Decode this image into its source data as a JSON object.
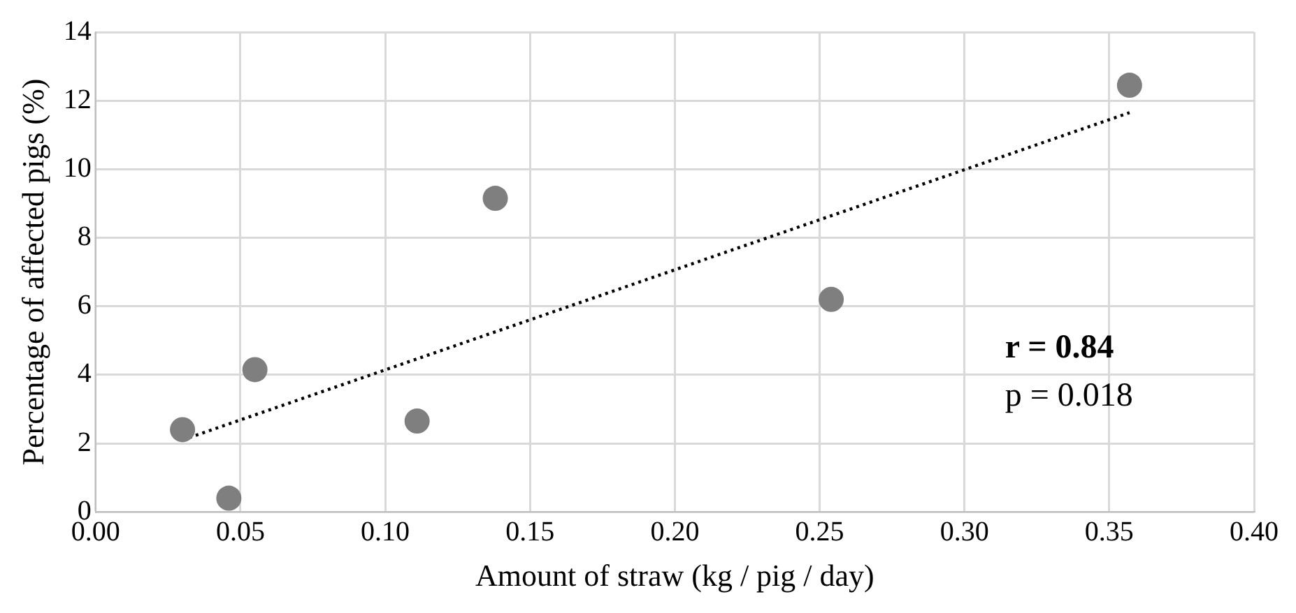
{
  "chart_data": {
    "type": "scatter",
    "xlabel": "Amount of straw (kg / pig / day)",
    "ylabel": "Percentage of affected pigs (%)",
    "series": [
      {
        "type": "scatter",
        "color": "#7f7f7f",
        "marker": "circle",
        "x": [
          0.03,
          0.046,
          0.055,
          0.111,
          0.138,
          0.254,
          0.357
        ],
        "values": [
          2.4,
          0.4,
          4.15,
          2.65,
          9.15,
          6.2,
          12.45
        ]
      },
      {
        "type": "line",
        "color": "#000000",
        "line_style": "dotted",
        "marker": "none",
        "x": [
          0.03,
          0.357
        ],
        "values": [
          2.1,
          11.65
        ]
      }
    ],
    "xlim": [
      0,
      0.4
    ],
    "xticks": [
      {
        "value": 0,
        "label": "0.00"
      },
      {
        "value": 0.05,
        "label": "0.05"
      },
      {
        "value": 0.1,
        "label": "0.10"
      },
      {
        "value": 0.15,
        "label": "0.15"
      },
      {
        "value": 0.2,
        "label": "0.20"
      },
      {
        "value": 0.25,
        "label": "0.25"
      },
      {
        "value": 0.3,
        "label": "0.30"
      },
      {
        "value": 0.35,
        "label": "0.35"
      },
      {
        "value": 0.4,
        "label": "0.40"
      }
    ],
    "ylim": [
      0,
      14
    ],
    "yticks": [
      0,
      2,
      4,
      6,
      8,
      10,
      12,
      14
    ],
    "grid": true,
    "legend": false,
    "annotations": [
      "r = 0.84",
      "p = 0.018"
    ]
  }
}
